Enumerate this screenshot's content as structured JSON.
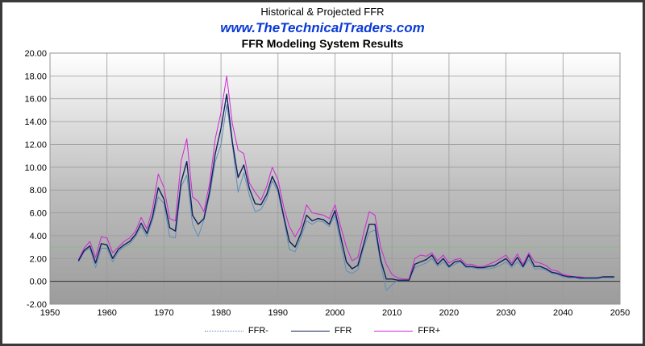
{
  "title": "Historical & Projected FFR",
  "website": "www.TheTechnicalTraders.com",
  "subtitle": "FFR Modeling System Results",
  "colors": {
    "ffr_minus": "#5f8fb8",
    "ffr": "#10205a",
    "ffr_plus": "#d026d6"
  },
  "chart_data": {
    "type": "line",
    "title": "Historical & Projected FFR",
    "subtitle": "FFR Modeling System Results",
    "xlim": [
      1950,
      2050
    ],
    "ylim": [
      -2,
      20
    ],
    "x_ticks": [
      "1950",
      "1960",
      "1970",
      "1980",
      "1990",
      "2000",
      "2010",
      "2020",
      "2030",
      "2040",
      "2050"
    ],
    "y_ticks": [
      "20.00",
      "18.00",
      "16.00",
      "14.00",
      "12.00",
      "10.00",
      "8.00",
      "6.00",
      "4.00",
      "2.00",
      "0.00",
      "-2.00"
    ],
    "grid": true,
    "legend": "bottom",
    "x": [
      1955,
      1956,
      1957,
      1958,
      1959,
      1960,
      1961,
      1962,
      1963,
      1964,
      1965,
      1966,
      1967,
      1968,
      1969,
      1970,
      1971,
      1972,
      1973,
      1974,
      1975,
      1976,
      1977,
      1978,
      1979,
      1980,
      1981,
      1982,
      1983,
      1984,
      1985,
      1986,
      1987,
      1988,
      1989,
      1990,
      1991,
      1992,
      1993,
      1994,
      1995,
      1996,
      1997,
      1998,
      1999,
      2000,
      2001,
      2002,
      2003,
      2004,
      2005,
      2006,
      2007,
      2008,
      2009,
      2010,
      2011,
      2012,
      2013,
      2014,
      2015,
      2016,
      2017,
      2018,
      2019,
      2020,
      2021,
      2022,
      2023,
      2024,
      2025,
      2026,
      2027,
      2028,
      2029,
      2030,
      2031,
      2032,
      2033,
      2034,
      2035,
      2036,
      2037,
      2038,
      2039,
      2040,
      2041,
      2042,
      2043,
      2044,
      2045,
      2046,
      2047,
      2048,
      2049
    ],
    "series": [
      {
        "name": "FFR-",
        "values": [
          1.7,
          2.6,
          2.9,
          1.2,
          2.9,
          2.9,
          1.7,
          2.6,
          3.0,
          3.3,
          3.9,
          4.8,
          3.9,
          5.4,
          7.4,
          6.8,
          3.9,
          3.8,
          8.3,
          9.3,
          5.0,
          3.9,
          5.4,
          7.5,
          10.5,
          12.0,
          15.5,
          12.0,
          7.8,
          9.5,
          7.5,
          6.1,
          6.3,
          7.2,
          8.8,
          7.8,
          5.5,
          2.8,
          2.6,
          3.8,
          5.3,
          5.0,
          5.3,
          5.2,
          4.8,
          5.8,
          3.3,
          0.9,
          0.7,
          1.0,
          2.9,
          4.3,
          4.5,
          1.6,
          -0.8,
          -0.3,
          0.1,
          0.1,
          0.1,
          1.2,
          1.4,
          1.6,
          2.0,
          1.3,
          1.7,
          1.2,
          1.5,
          1.7,
          1.2,
          1.2,
          1.1,
          1.1,
          1.1,
          1.2,
          1.4,
          1.7,
          1.2,
          1.7,
          1.2,
          1.9,
          1.1,
          1.1,
          1.0,
          0.7,
          0.6,
          0.4,
          0.3,
          0.3,
          0.2,
          0.2,
          0.2,
          0.2,
          0.3,
          0.3,
          0.3
        ]
      },
      {
        "name": "FFR",
        "values": [
          1.8,
          2.7,
          3.1,
          1.6,
          3.3,
          3.2,
          2.0,
          2.8,
          3.2,
          3.5,
          4.1,
          5.1,
          4.2,
          5.7,
          8.2,
          7.2,
          4.7,
          4.4,
          8.7,
          10.5,
          5.8,
          5.0,
          5.5,
          7.9,
          11.2,
          13.4,
          16.4,
          12.2,
          9.1,
          10.2,
          8.1,
          6.8,
          6.7,
          7.6,
          9.2,
          8.1,
          5.7,
          3.5,
          3.0,
          4.2,
          5.8,
          5.3,
          5.5,
          5.4,
          5.0,
          6.2,
          3.9,
          1.7,
          1.1,
          1.4,
          3.2,
          5.0,
          5.0,
          1.9,
          0.2,
          0.2,
          0.1,
          0.1,
          0.1,
          1.5,
          1.7,
          1.9,
          2.3,
          1.5,
          2.0,
          1.3,
          1.7,
          1.8,
          1.3,
          1.3,
          1.2,
          1.2,
          1.3,
          1.4,
          1.7,
          2.0,
          1.4,
          2.1,
          1.3,
          2.3,
          1.3,
          1.3,
          1.1,
          0.8,
          0.7,
          0.5,
          0.4,
          0.4,
          0.3,
          0.3,
          0.3,
          0.3,
          0.4,
          0.4,
          0.4
        ]
      },
      {
        "name": "FFR+",
        "values": [
          1.9,
          2.9,
          3.5,
          2.1,
          3.9,
          3.8,
          2.5,
          3.0,
          3.5,
          3.8,
          4.4,
          5.6,
          4.6,
          6.4,
          9.4,
          8.2,
          5.5,
          5.3,
          10.5,
          12.5,
          7.4,
          7.0,
          6.1,
          8.6,
          12.5,
          14.8,
          18.0,
          13.8,
          11.5,
          11.2,
          8.6,
          7.8,
          7.1,
          8.3,
          10.0,
          8.9,
          6.5,
          4.8,
          3.9,
          4.8,
          6.7,
          6.0,
          5.9,
          5.8,
          5.5,
          6.7,
          4.8,
          3.0,
          1.8,
          2.1,
          4.2,
          6.1,
          5.8,
          3.0,
          1.5,
          0.6,
          0.3,
          0.2,
          0.2,
          2.0,
          2.3,
          2.2,
          2.5,
          1.8,
          2.3,
          1.6,
          1.9,
          2.0,
          1.5,
          1.5,
          1.3,
          1.3,
          1.5,
          1.7,
          2.0,
          2.3,
          1.6,
          2.4,
          1.5,
          2.5,
          1.7,
          1.6,
          1.4,
          1.0,
          0.9,
          0.6,
          0.5,
          0.4,
          0.4,
          0.3,
          0.3,
          0.3,
          0.4,
          0.4,
          0.4
        ]
      }
    ]
  }
}
